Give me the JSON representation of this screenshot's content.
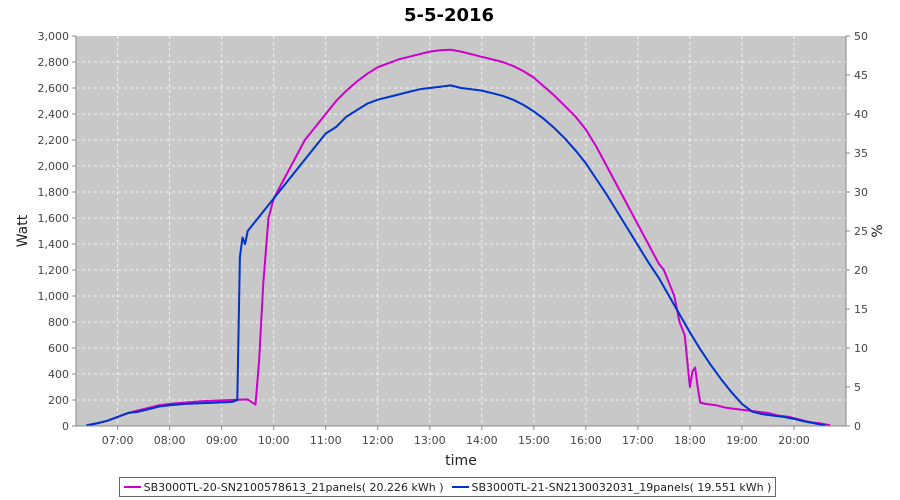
{
  "chart_data": {
    "type": "line",
    "title": "5-5-2016",
    "xlabel": "time",
    "ylabel": "Watt",
    "y2label": "%",
    "xlim": [
      6.2,
      21.0
    ],
    "ylim": [
      0,
      3000
    ],
    "y2lim": [
      0,
      50
    ],
    "xticks": [
      "07:00",
      "08:00",
      "09:00",
      "10:00",
      "11:00",
      "12:00",
      "13:00",
      "14:00",
      "15:00",
      "16:00",
      "17:00",
      "18:00",
      "19:00",
      "20:00"
    ],
    "yticks": [
      "0",
      "200",
      "400",
      "600",
      "800",
      "1,000",
      "1,200",
      "1,400",
      "1,600",
      "1,800",
      "2,000",
      "2,200",
      "2,400",
      "2,600",
      "2,800",
      "3,000"
    ],
    "y2ticks": [
      "0",
      "5",
      "10",
      "15",
      "20",
      "25",
      "30",
      "35",
      "40",
      "45",
      "50"
    ],
    "grid": true,
    "legend_position": "bottom",
    "series": [
      {
        "name": "SB3000TL-20-SN2100578613_21panels( 20.226 kWh )",
        "color": "#cc00cc",
        "x": [
          6.4,
          6.6,
          6.8,
          7.0,
          7.2,
          7.4,
          7.6,
          7.8,
          8.0,
          8.3,
          8.6,
          8.9,
          9.2,
          9.5,
          9.65,
          9.72,
          9.8,
          9.9,
          10.0,
          10.2,
          10.4,
          10.6,
          10.8,
          11.0,
          11.2,
          11.4,
          11.6,
          11.8,
          12.0,
          12.2,
          12.4,
          12.6,
          12.8,
          13.0,
          13.2,
          13.4,
          13.6,
          13.8,
          14.0,
          14.2,
          14.4,
          14.6,
          14.8,
          15.0,
          15.2,
          15.4,
          15.6,
          15.8,
          16.0,
          16.2,
          16.4,
          16.6,
          16.8,
          17.0,
          17.2,
          17.4,
          17.5,
          17.6,
          17.7,
          17.8,
          17.9,
          18.0,
          18.05,
          18.1,
          18.15,
          18.2,
          18.3,
          18.5,
          18.7,
          18.9,
          19.1,
          19.3,
          19.5,
          19.7,
          19.9,
          20.1,
          20.3,
          20.5,
          20.7
        ],
        "values": [
          5,
          20,
          40,
          70,
          100,
          120,
          140,
          160,
          170,
          180,
          190,
          195,
          200,
          205,
          165,
          500,
          1100,
          1600,
          1750,
          1900,
          2050,
          2200,
          2300,
          2400,
          2500,
          2580,
          2650,
          2710,
          2760,
          2790,
          2820,
          2840,
          2860,
          2880,
          2890,
          2895,
          2880,
          2860,
          2840,
          2820,
          2800,
          2770,
          2730,
          2680,
          2610,
          2540,
          2460,
          2380,
          2280,
          2150,
          2000,
          1850,
          1700,
          1550,
          1400,
          1250,
          1200,
          1100,
          1000,
          800,
          700,
          300,
          420,
          450,
          300,
          180,
          170,
          160,
          140,
          130,
          120,
          110,
          100,
          80,
          70,
          50,
          30,
          20,
          5
        ]
      },
      {
        "name": "SB3000TL-21-SN2130032031_19panels( 19.551 kWh )",
        "color": "#0033cc",
        "x": [
          6.4,
          6.6,
          6.8,
          7.0,
          7.2,
          7.4,
          7.6,
          7.8,
          8.0,
          8.3,
          8.6,
          8.9,
          9.2,
          9.3,
          9.35,
          9.4,
          9.45,
          9.5,
          9.6,
          9.8,
          10.0,
          10.2,
          10.4,
          10.6,
          10.8,
          11.0,
          11.2,
          11.4,
          11.6,
          11.8,
          12.0,
          12.2,
          12.4,
          12.6,
          12.8,
          13.0,
          13.2,
          13.4,
          13.6,
          13.8,
          14.0,
          14.2,
          14.4,
          14.6,
          14.8,
          15.0,
          15.2,
          15.4,
          15.6,
          15.8,
          16.0,
          16.2,
          16.4,
          16.6,
          16.8,
          17.0,
          17.2,
          17.4,
          17.6,
          17.8,
          18.0,
          18.2,
          18.4,
          18.6,
          18.8,
          19.0,
          19.2,
          19.4,
          19.6,
          19.8,
          20.0,
          20.2,
          20.4,
          20.6
        ],
        "values": [
          5,
          20,
          40,
          70,
          100,
          110,
          130,
          150,
          160,
          170,
          175,
          180,
          185,
          200,
          1300,
          1450,
          1400,
          1500,
          1550,
          1650,
          1750,
          1850,
          1950,
          2050,
          2150,
          2250,
          2300,
          2380,
          2430,
          2480,
          2510,
          2530,
          2550,
          2570,
          2590,
          2600,
          2610,
          2620,
          2600,
          2590,
          2580,
          2560,
          2540,
          2510,
          2470,
          2420,
          2360,
          2290,
          2210,
          2120,
          2020,
          1900,
          1780,
          1650,
          1520,
          1390,
          1260,
          1140,
          1000,
          860,
          720,
          590,
          470,
          360,
          260,
          170,
          110,
          90,
          80,
          70,
          55,
          35,
          20,
          5
        ]
      }
    ]
  }
}
